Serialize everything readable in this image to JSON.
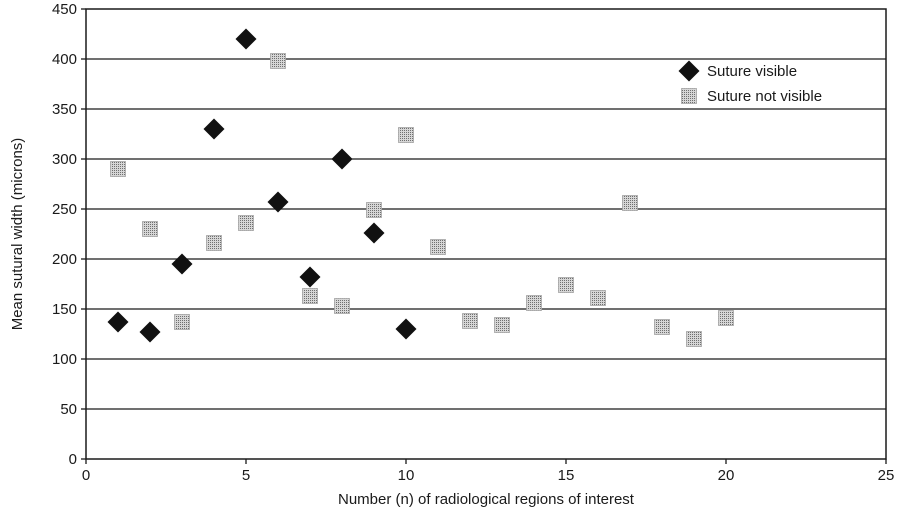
{
  "chart_data": {
    "type": "scatter",
    "xlabel": "Number (n) of radiological regions of interest",
    "ylabel": "Mean sutural width (microns)",
    "xlim": [
      0,
      25
    ],
    "ylim": [
      0,
      450
    ],
    "xticks": [
      0,
      5,
      10,
      15,
      20,
      25
    ],
    "yticks": [
      0,
      50,
      100,
      150,
      200,
      250,
      300,
      350,
      400,
      450
    ],
    "grid": "horizontal",
    "legend_position": "top-right",
    "series": [
      {
        "name": "Suture visible",
        "marker": "diamond",
        "color": "#111111",
        "points": [
          {
            "x": 1,
            "y": 137
          },
          {
            "x": 2,
            "y": 127
          },
          {
            "x": 3,
            "y": 195
          },
          {
            "x": 4,
            "y": 330
          },
          {
            "x": 5,
            "y": 420
          },
          {
            "x": 6,
            "y": 257
          },
          {
            "x": 7,
            "y": 182
          },
          {
            "x": 8,
            "y": 300
          },
          {
            "x": 9,
            "y": 226
          },
          {
            "x": 10,
            "y": 130
          }
        ]
      },
      {
        "name": "Suture not visible",
        "marker": "square",
        "color": "#b3b3b3",
        "points": [
          {
            "x": 1,
            "y": 290
          },
          {
            "x": 2,
            "y": 230
          },
          {
            "x": 3,
            "y": 137
          },
          {
            "x": 4,
            "y": 216
          },
          {
            "x": 5,
            "y": 236
          },
          {
            "x": 6,
            "y": 398
          },
          {
            "x": 7,
            "y": 163
          },
          {
            "x": 8,
            "y": 153
          },
          {
            "x": 9,
            "y": 249
          },
          {
            "x": 10,
            "y": 324
          },
          {
            "x": 11,
            "y": 212
          },
          {
            "x": 12,
            "y": 138
          },
          {
            "x": 13,
            "y": 134
          },
          {
            "x": 14,
            "y": 156
          },
          {
            "x": 15,
            "y": 174
          },
          {
            "x": 16,
            "y": 161
          },
          {
            "x": 17,
            "y": 256
          },
          {
            "x": 18,
            "y": 132
          },
          {
            "x": 19,
            "y": 120
          },
          {
            "x": 20,
            "y": 141
          }
        ]
      }
    ]
  }
}
